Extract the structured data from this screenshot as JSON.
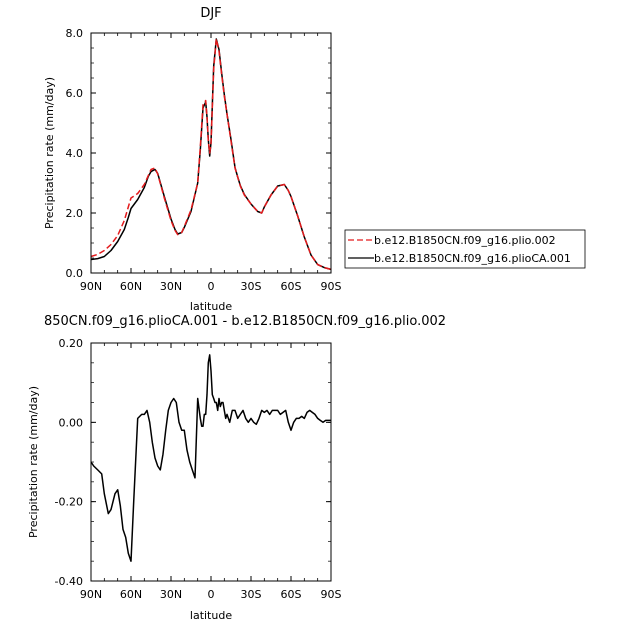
{
  "chart_data": [
    {
      "type": "line",
      "title": "DJF",
      "xlabel": "latitude",
      "ylabel": "Precipitation rate (mm/day)",
      "xlim": [
        90,
        -90
      ],
      "ylim": [
        0,
        8
      ],
      "x_ticks": [
        90,
        60,
        30,
        0,
        -30,
        -60,
        -90
      ],
      "x_tick_labels": [
        "90N",
        "60N",
        "30N",
        "0",
        "30S",
        "60S",
        "90S"
      ],
      "y_ticks": [
        0,
        2,
        4,
        6,
        8
      ],
      "y_tick_labels": [
        "0.0",
        "2.0",
        "4.0",
        "6.0",
        "8.0"
      ],
      "legend_position": "right",
      "series": [
        {
          "name": "b.e12.B1850CN.f09_g16.plio.002",
          "color": "#e41a1c",
          "dash": "dashed",
          "x": [
            90,
            85,
            80,
            75,
            70,
            65,
            62,
            60,
            55,
            50,
            47,
            45,
            42,
            40,
            35,
            30,
            27,
            25,
            22,
            20,
            15,
            10,
            8,
            6,
            4,
            3,
            2,
            1,
            0,
            -2,
            -4,
            -6,
            -8,
            -10,
            -12,
            -15,
            -18,
            -20,
            -22,
            -25,
            -30,
            -35,
            -38,
            -40,
            -45,
            -50,
            -55,
            -58,
            -60,
            -65,
            -70,
            -75,
            -80,
            -85,
            -90
          ],
          "y": [
            0.55,
            0.62,
            0.75,
            0.95,
            1.25,
            1.75,
            2.2,
            2.5,
            2.65,
            2.95,
            3.25,
            3.45,
            3.5,
            3.3,
            2.5,
            1.75,
            1.42,
            1.28,
            1.35,
            1.55,
            2.1,
            3.0,
            4.2,
            5.6,
            5.75,
            5.2,
            4.4,
            4.0,
            4.3,
            6.8,
            7.8,
            7.4,
            6.6,
            5.9,
            5.3,
            4.4,
            3.5,
            3.2,
            2.9,
            2.6,
            2.3,
            2.05,
            2.0,
            2.2,
            2.6,
            2.9,
            2.95,
            2.75,
            2.55,
            1.9,
            1.2,
            0.6,
            0.28,
            0.18,
            0.12
          ]
        },
        {
          "name": "b.e12.B1850CN.f09_g16.plioCA.001",
          "color": "#000000",
          "dash": "solid",
          "x": [
            90,
            85,
            80,
            75,
            70,
            65,
            62,
            60,
            55,
            50,
            47,
            45,
            42,
            40,
            35,
            30,
            27,
            25,
            22,
            20,
            15,
            10,
            8,
            6,
            4,
            3,
            2,
            1,
            0,
            -2,
            -4,
            -6,
            -8,
            -10,
            -12,
            -15,
            -18,
            -20,
            -22,
            -25,
            -30,
            -35,
            -38,
            -40,
            -45,
            -50,
            -55,
            -58,
            -60,
            -65,
            -70,
            -75,
            -80,
            -85,
            -90
          ],
          "y": [
            0.45,
            0.48,
            0.55,
            0.75,
            1.05,
            1.45,
            1.85,
            2.15,
            2.45,
            2.85,
            3.22,
            3.38,
            3.45,
            3.32,
            2.55,
            1.8,
            1.45,
            1.3,
            1.35,
            1.52,
            2.05,
            3.0,
            4.1,
            5.5,
            5.7,
            5.2,
            4.45,
            3.9,
            4.35,
            6.9,
            7.8,
            7.45,
            6.65,
            5.95,
            5.3,
            4.45,
            3.52,
            3.2,
            2.92,
            2.62,
            2.3,
            2.05,
            2.0,
            2.2,
            2.6,
            2.9,
            2.95,
            2.75,
            2.55,
            1.9,
            1.2,
            0.6,
            0.28,
            0.18,
            0.12
          ]
        }
      ]
    },
    {
      "type": "line",
      "title": "850CN.f09_g16.plioCA.001 - b.e12.B1850CN.f09_g16.plio.002",
      "xlabel": "latitude",
      "ylabel": "Precipitation rate (mm/day)",
      "xlim": [
        90,
        -90
      ],
      "ylim": [
        -0.4,
        0.2
      ],
      "x_ticks": [
        90,
        60,
        30,
        0,
        -30,
        -60,
        -90
      ],
      "x_tick_labels": [
        "90N",
        "60N",
        "30N",
        "0",
        "30S",
        "60S",
        "90S"
      ],
      "y_ticks": [
        -0.4,
        -0.2,
        0,
        0.2
      ],
      "y_tick_labels": [
        "-0.40",
        "-0.20",
        "0.00",
        "0.20"
      ],
      "series": [
        {
          "color": "#000000",
          "x": [
            90,
            88,
            85,
            82,
            80,
            77,
            75,
            72,
            70,
            68,
            66,
            64,
            62,
            60,
            58,
            55,
            52,
            50,
            48,
            46,
            44,
            42,
            40,
            38,
            36,
            34,
            32,
            30,
            28,
            26,
            24,
            22,
            20,
            18,
            16,
            14,
            12,
            10,
            8,
            7,
            6,
            5,
            4,
            3,
            2,
            1,
            0,
            -1,
            -2,
            -3,
            -4,
            -5,
            -6,
            -7,
            -8,
            -9,
            -10,
            -11,
            -12,
            -14,
            -16,
            -18,
            -20,
            -22,
            -24,
            -26,
            -28,
            -30,
            -32,
            -34,
            -36,
            -38,
            -40,
            -42,
            -44,
            -46,
            -48,
            -50,
            -52,
            -54,
            -56,
            -58,
            -60,
            -62,
            -64,
            -66,
            -68,
            -70,
            -72,
            -74,
            -76,
            -78,
            -80,
            -82,
            -84,
            -86,
            -88,
            -90
          ],
          "y": [
            -0.1,
            -0.11,
            -0.12,
            -0.13,
            -0.18,
            -0.23,
            -0.22,
            -0.18,
            -0.17,
            -0.21,
            -0.27,
            -0.29,
            -0.33,
            -0.35,
            -0.2,
            0.01,
            0.02,
            0.02,
            0.03,
            0.0,
            -0.05,
            -0.09,
            -0.11,
            -0.12,
            -0.08,
            -0.02,
            0.03,
            0.05,
            0.06,
            0.05,
            0.0,
            -0.02,
            -0.02,
            -0.07,
            -0.1,
            -0.12,
            -0.14,
            0.06,
            0.01,
            -0.01,
            -0.01,
            0.02,
            0.02,
            0.07,
            0.15,
            0.17,
            0.13,
            0.07,
            0.06,
            0.05,
            0.05,
            0.03,
            0.06,
            0.04,
            0.05,
            0.05,
            0.03,
            0.01,
            0.02,
            0.0,
            0.03,
            0.03,
            0.01,
            0.02,
            0.03,
            0.01,
            0.0,
            0.01,
            0.0,
            -0.005,
            0.01,
            0.03,
            0.025,
            0.03,
            0.02,
            0.03,
            0.03,
            0.03,
            0.02,
            0.025,
            0.03,
            0.0,
            -0.02,
            0.0,
            0.01,
            0.01,
            0.015,
            0.01,
            0.025,
            0.03,
            0.025,
            0.02,
            0.01,
            0.005,
            0.0,
            0.005,
            0.005,
            0.005
          ]
        }
      ]
    }
  ]
}
